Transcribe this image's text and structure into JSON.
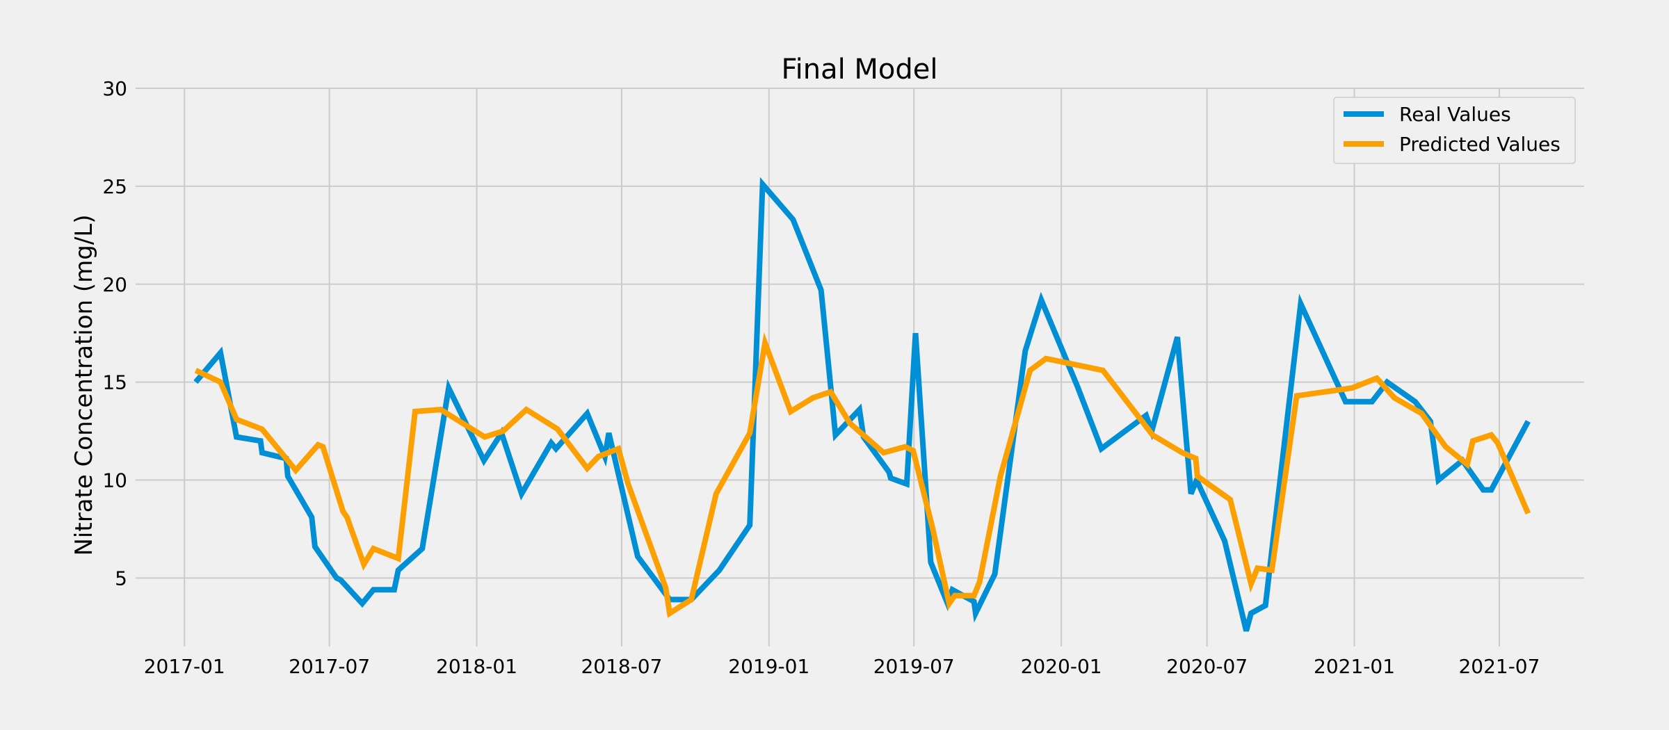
{
  "chart_data": {
    "type": "line",
    "title": "Final Model",
    "xlabel": "",
    "ylabel": "Nitrate Concentration (mg/L)",
    "xlim": [
      "2016-11-01",
      "2021-10-15"
    ],
    "ylim": [
      1.5,
      30
    ],
    "x_ticks": [
      "2017-01",
      "2017-07",
      "2018-01",
      "2018-07",
      "2019-01",
      "2019-07",
      "2020-01",
      "2020-07",
      "2021-01",
      "2021-07"
    ],
    "y_ticks": [
      5,
      10,
      15,
      20,
      25,
      30
    ],
    "grid": true,
    "legend_position": "top-right",
    "series": [
      {
        "name": "Real Values",
        "color": "#008fd5",
        "points": [
          [
            "2017-01-15",
            15.0
          ],
          [
            "2017-02-15",
            16.5
          ],
          [
            "2017-03-07",
            12.2
          ],
          [
            "2017-04-06",
            12.0
          ],
          [
            "2017-04-08",
            11.4
          ],
          [
            "2017-05-08",
            11.1
          ],
          [
            "2017-05-10",
            10.2
          ],
          [
            "2017-06-09",
            8.1
          ],
          [
            "2017-06-13",
            6.6
          ],
          [
            "2017-07-10",
            5.0
          ],
          [
            "2017-07-15",
            4.9
          ],
          [
            "2017-08-11",
            3.7
          ],
          [
            "2017-08-25",
            4.4
          ],
          [
            "2017-09-20",
            4.4
          ],
          [
            "2017-09-25",
            5.4
          ],
          [
            "2017-10-25",
            6.5
          ],
          [
            "2017-11-27",
            14.7
          ],
          [
            "2018-01-10",
            11.0
          ],
          [
            "2018-02-01",
            12.4
          ],
          [
            "2018-02-26",
            9.3
          ],
          [
            "2018-04-04",
            11.9
          ],
          [
            "2018-04-10",
            11.6
          ],
          [
            "2018-05-19",
            13.4
          ],
          [
            "2018-06-10",
            11.2
          ],
          [
            "2018-06-15",
            12.4
          ],
          [
            "2018-07-21",
            6.1
          ],
          [
            "2018-08-30",
            3.9
          ],
          [
            "2018-09-26",
            3.9
          ],
          [
            "2018-10-31",
            5.4
          ],
          [
            "2018-12-08",
            7.7
          ],
          [
            "2018-12-24",
            25.1
          ],
          [
            "2019-01-31",
            23.3
          ],
          [
            "2019-03-07",
            19.7
          ],
          [
            "2019-03-25",
            12.3
          ],
          [
            "2019-04-24",
            13.6
          ],
          [
            "2019-04-29",
            12.2
          ],
          [
            "2019-05-31",
            10.4
          ],
          [
            "2019-06-02",
            10.1
          ],
          [
            "2019-06-22",
            9.8
          ],
          [
            "2019-07-03",
            17.5
          ],
          [
            "2019-07-22",
            5.8
          ],
          [
            "2019-08-12",
            3.7
          ],
          [
            "2019-08-18",
            4.4
          ],
          [
            "2019-09-14",
            3.8
          ],
          [
            "2019-09-16",
            3.2
          ],
          [
            "2019-10-10",
            5.2
          ],
          [
            "2019-11-17",
            16.6
          ],
          [
            "2019-12-07",
            19.2
          ],
          [
            "2020-01-21",
            14.8
          ],
          [
            "2020-02-20",
            11.6
          ],
          [
            "2020-04-16",
            13.3
          ],
          [
            "2020-04-23",
            12.5
          ],
          [
            "2020-05-25",
            17.3
          ],
          [
            "2020-06-11",
            9.3
          ],
          [
            "2020-06-18",
            10.0
          ],
          [
            "2020-07-23",
            6.9
          ],
          [
            "2020-08-19",
            2.3
          ],
          [
            "2020-08-25",
            3.2
          ],
          [
            "2020-09-12",
            3.6
          ],
          [
            "2020-10-26",
            19.0
          ],
          [
            "2020-12-21",
            14.0
          ],
          [
            "2021-01-23",
            14.0
          ],
          [
            "2021-02-11",
            15.0
          ],
          [
            "2021-03-18",
            14.0
          ],
          [
            "2021-04-06",
            13.0
          ],
          [
            "2021-04-16",
            10.0
          ],
          [
            "2021-05-16",
            11.0
          ],
          [
            "2021-06-11",
            9.5
          ],
          [
            "2021-06-21",
            9.5
          ],
          [
            "2021-08-06",
            13.0
          ]
        ]
      },
      {
        "name": "Predicted Values",
        "color": "#fc9f00",
        "points": [
          [
            "2017-01-15",
            15.6
          ],
          [
            "2017-02-15",
            15.0
          ],
          [
            "2017-03-07",
            13.1
          ],
          [
            "2017-04-08",
            12.6
          ],
          [
            "2017-05-20",
            10.5
          ],
          [
            "2017-06-17",
            11.8
          ],
          [
            "2017-06-23",
            11.7
          ],
          [
            "2017-07-18",
            8.4
          ],
          [
            "2017-07-23",
            8.1
          ],
          [
            "2017-08-13",
            5.7
          ],
          [
            "2017-08-25",
            6.5
          ],
          [
            "2017-09-25",
            6.0
          ],
          [
            "2017-10-16",
            13.5
          ],
          [
            "2017-11-17",
            13.6
          ],
          [
            "2018-01-11",
            12.2
          ],
          [
            "2018-02-03",
            12.5
          ],
          [
            "2018-03-04",
            13.6
          ],
          [
            "2018-04-12",
            12.6
          ],
          [
            "2018-05-19",
            10.6
          ],
          [
            "2018-06-02",
            11.2
          ],
          [
            "2018-06-27",
            11.6
          ],
          [
            "2018-07-09",
            9.8
          ],
          [
            "2018-08-25",
            4.5
          ],
          [
            "2018-08-30",
            3.2
          ],
          [
            "2018-09-26",
            3.9
          ],
          [
            "2018-10-27",
            9.3
          ],
          [
            "2018-12-08",
            12.4
          ],
          [
            "2018-12-27",
            17.0
          ],
          [
            "2019-01-28",
            13.5
          ],
          [
            "2019-02-25",
            14.2
          ],
          [
            "2019-03-19",
            14.5
          ],
          [
            "2019-04-12",
            12.9
          ],
          [
            "2019-05-24",
            11.4
          ],
          [
            "2019-06-20",
            11.7
          ],
          [
            "2019-06-30",
            11.5
          ],
          [
            "2019-07-24",
            7.6
          ],
          [
            "2019-08-14",
            3.7
          ],
          [
            "2019-08-21",
            4.1
          ],
          [
            "2019-09-14",
            4.1
          ],
          [
            "2019-09-21",
            4.8
          ],
          [
            "2019-10-17",
            10.2
          ],
          [
            "2019-11-23",
            15.6
          ],
          [
            "2019-12-13",
            16.2
          ],
          [
            "2020-02-22",
            15.6
          ],
          [
            "2020-04-24",
            12.3
          ],
          [
            "2020-05-31",
            11.4
          ],
          [
            "2020-06-17",
            11.1
          ],
          [
            "2020-06-19",
            10.2
          ],
          [
            "2020-07-30",
            9.0
          ],
          [
            "2020-08-25",
            4.7
          ],
          [
            "2020-09-02",
            5.5
          ],
          [
            "2020-09-20",
            5.4
          ],
          [
            "2020-10-21",
            14.3
          ],
          [
            "2020-12-29",
            14.7
          ],
          [
            "2021-01-29",
            15.2
          ],
          [
            "2021-02-20",
            14.2
          ],
          [
            "2021-03-26",
            13.4
          ],
          [
            "2021-04-25",
            11.7
          ],
          [
            "2021-05-22",
            10.8
          ],
          [
            "2021-05-29",
            12.0
          ],
          [
            "2021-06-21",
            12.3
          ],
          [
            "2021-06-29",
            11.9
          ],
          [
            "2021-08-06",
            8.3
          ]
        ]
      }
    ]
  }
}
